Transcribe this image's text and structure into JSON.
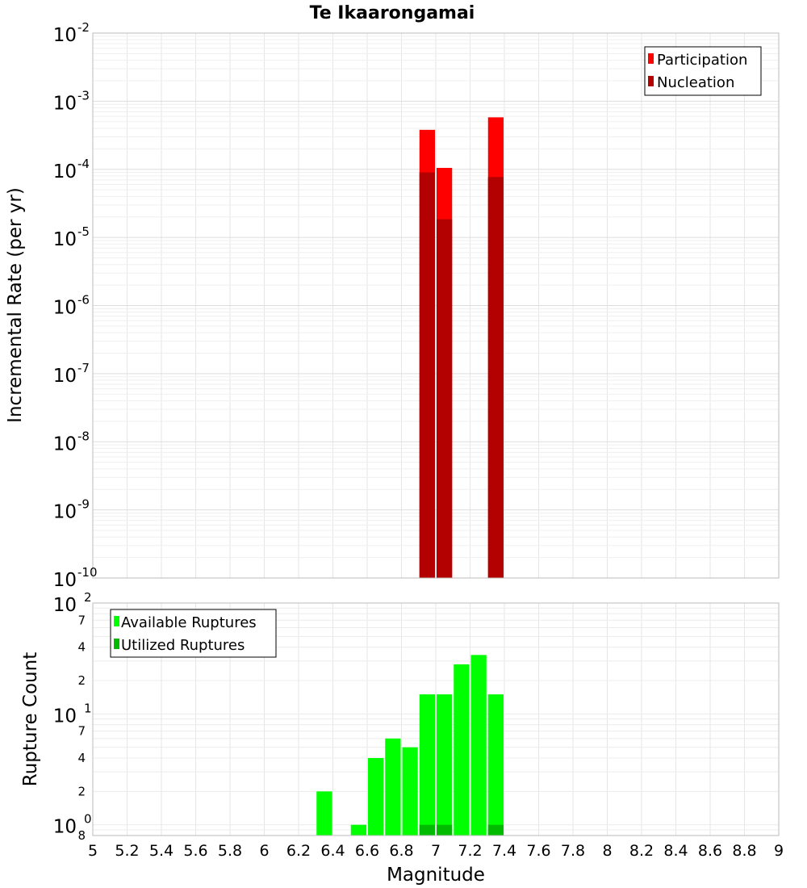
{
  "chart_data": [
    {
      "type": "bar",
      "title": "Te Ikaarongamai",
      "xlabel": "",
      "ylabel": "Incremental Rate (per yr)",
      "yscale": "log",
      "ylim": [
        1e-10,
        0.01
      ],
      "xlim": [
        5,
        9
      ],
      "bin_width": 0.1,
      "x": [
        6.95,
        7.05,
        7.35
      ],
      "series": [
        {
          "name": "Participation",
          "color": "#ff0000",
          "values": [
            0.00038,
            0.000105,
            0.00058
          ]
        },
        {
          "name": "Nucleation",
          "color": "#b30000",
          "values": [
            9e-05,
            1.85e-05,
            7.7e-05
          ]
        }
      ],
      "y_tick_labels": [
        {
          "base": "10",
          "exp": "-2"
        },
        {
          "base": "10",
          "exp": "-3"
        },
        {
          "base": "10",
          "exp": "-4"
        },
        {
          "base": "10",
          "exp": "-5"
        },
        {
          "base": "10",
          "exp": "-6"
        },
        {
          "base": "10",
          "exp": "-7"
        },
        {
          "base": "10",
          "exp": "-8"
        },
        {
          "base": "10",
          "exp": "-9"
        },
        {
          "base": "10",
          "exp": "-10"
        }
      ],
      "grid": true,
      "legend": "top-right"
    },
    {
      "type": "bar",
      "xlabel": "Magnitude",
      "ylabel": "Rupture Count",
      "yscale": "log",
      "ylim": [
        0.8,
        100
      ],
      "xlim": [
        5,
        9
      ],
      "bin_width": 0.1,
      "x": [
        6.35,
        6.55,
        6.65,
        6.75,
        6.85,
        6.95,
        7.05,
        7.15,
        7.25,
        7.35
      ],
      "series": [
        {
          "name": "Available Ruptures",
          "color": "#00ff00",
          "values": [
            2,
            1,
            4,
            6,
            5,
            15,
            15,
            28,
            34,
            15
          ]
        },
        {
          "name": "Utilized Ruptures",
          "color": "#00bb00",
          "values": [
            0,
            0,
            0,
            0,
            0,
            1,
            1,
            0,
            0,
            1
          ]
        }
      ],
      "y_tick_labels": [
        {
          "base": "10",
          "exp": "2"
        },
        {
          "base": "10",
          "exp": "1"
        },
        {
          "base": "10",
          "exp": "0"
        }
      ],
      "y_minor_tick_labels": [
        "7",
        "4",
        "2",
        "7",
        "4",
        "2",
        "8"
      ],
      "x_tick_labels": [
        "5",
        "5.2",
        "5.4",
        "5.6",
        "5.8",
        "6",
        "6.2",
        "6.4",
        "6.6",
        "6.8",
        "7",
        "7.2",
        "7.4",
        "7.6",
        "7.8",
        "8",
        "8.2",
        "8.4",
        "8.6",
        "8.8",
        "9"
      ],
      "grid": true,
      "legend": "top-left"
    }
  ]
}
